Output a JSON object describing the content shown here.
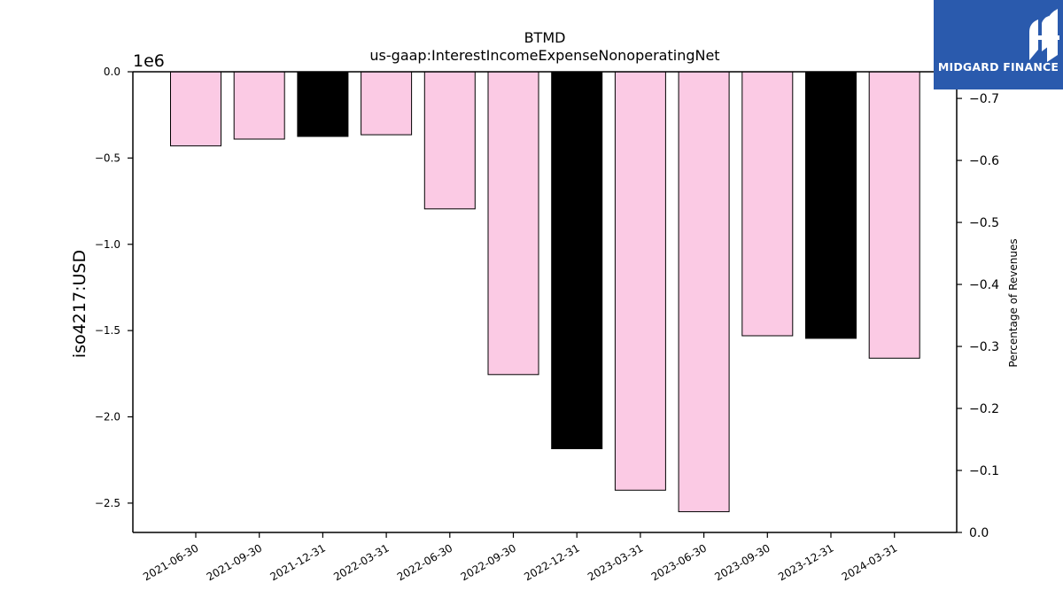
{
  "chart_data": {
    "type": "bar",
    "title": "BTMD",
    "subtitle": "us-gaap:InterestIncomeExpenseNonoperatingNet",
    "ylabel": "iso4217:USD",
    "ylabel_right": "Percentage of Revenues",
    "offset_label": "1e6",
    "categories": [
      "2021-06-30",
      "2021-09-30",
      "2021-12-31",
      "2022-03-31",
      "2022-06-30",
      "2022-09-30",
      "2022-12-31",
      "2023-03-31",
      "2023-06-30",
      "2023-09-30",
      "2023-12-31",
      "2024-03-31"
    ],
    "values": [
      -430000,
      -390000,
      -375000,
      -365000,
      -795000,
      -1755000,
      -2185000,
      -2425000,
      -2550000,
      -1530000,
      -1545000,
      -1660000
    ],
    "bar_colors": [
      "#fbcae4",
      "#fbcae4",
      "#000000",
      "#fbcae4",
      "#fbcae4",
      "#fbcae4",
      "#000000",
      "#fbcae4",
      "#fbcae4",
      "#fbcae4",
      "#000000",
      "#fbcae4"
    ],
    "ylim": [
      -2670000,
      0
    ],
    "yticks": [
      0,
      -500000,
      -1000000,
      -1500000,
      -2000000,
      -2500000
    ],
    "ytick_labels": [
      "0.0",
      "−0.5",
      "−1.0",
      "−1.5",
      "−2.0",
      "−2.5"
    ],
    "ylim_right": [
      0,
      -0.743
    ],
    "yticks_right": [
      0,
      -0.1,
      -0.2,
      -0.3,
      -0.4,
      -0.5,
      -0.6,
      -0.7
    ],
    "ytick_labels_right": [
      "0.0",
      "−0.1",
      "−0.2",
      "−0.3",
      "−0.4",
      "−0.5",
      "−0.6",
      "−0.7"
    ],
    "grid": false
  },
  "logo": {
    "text": "MIDGARD FINANCE",
    "background": "#2a5aad"
  }
}
